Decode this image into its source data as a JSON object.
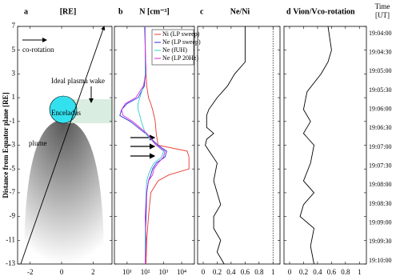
{
  "chart_data": [
    {
      "type": "line",
      "panel": "a",
      "header": "[RE]",
      "ylabel": "Distance from Equator plane [RE]",
      "ylim": [
        -13,
        7
      ],
      "yticks": [
        7,
        5,
        3,
        1,
        -1,
        -3,
        -5,
        -7,
        -9,
        -11,
        -13
      ],
      "xlim": [
        -2.8,
        3.2
      ],
      "xticks": [
        -2,
        0,
        2
      ],
      "annotations": [
        "co-rotation",
        "Ideal plasma wake",
        "Enceladus",
        "plume"
      ],
      "distance": [
        -13,
        7
      ],
      "series": [
        {
          "color": "#000000",
          "values": [
            -2.6,
            2.7
          ]
        }
      ]
    },
    {
      "type": "line",
      "panel": "b",
      "header": "N [cm⁻³]",
      "log": true,
      "xlim": [
        2,
        50000
      ],
      "xticks": [
        {
          "value": 10,
          "label": "10¹"
        },
        {
          "value": 100,
          "label": "10²"
        },
        {
          "value": 1000,
          "label": "10³"
        },
        {
          "value": 10000,
          "label": "10⁴"
        }
      ],
      "distance": [
        7,
        5,
        3,
        2,
        1,
        0.5,
        0,
        -0.5,
        -1,
        -2,
        -3,
        -3.5,
        -4,
        -4.5,
        -5,
        -5.5,
        -6,
        -7,
        -9,
        -11,
        -13
      ],
      "series": [
        {
          "name": "Ni (LP sweep)",
          "color": "#e8392c",
          "values": [
            100,
            100,
            110,
            120,
            150,
            200,
            250,
            300,
            350,
            400,
            500,
            20000,
            25000,
            25000,
            25000,
            2000,
            500,
            200,
            150,
            120,
            110
          ]
        },
        {
          "name": "Ne (LP sweep)",
          "color": "#2233dd",
          "values": [
            100,
            100,
            100,
            90,
            40,
            10,
            5,
            4,
            15,
            100,
            500,
            1500,
            1200,
            400,
            250,
            200,
            150,
            120,
            110,
            100,
            100
          ]
        },
        {
          "name": "Ne (fUH)",
          "color": "#33cccc",
          "values": [
            100,
            100,
            100,
            80,
            50,
            40,
            40,
            50,
            60,
            100,
            400,
            1000,
            800,
            300,
            200,
            150,
            120,
            110,
            100,
            100,
            100
          ]
        },
        {
          "name": "Ne (LP 20Hz)",
          "color": "#dd22dd",
          "values": [
            90,
            100,
            110,
            80,
            30,
            8,
            5,
            6,
            20,
            120,
            400,
            1200,
            1000,
            500,
            300,
            250,
            150,
            120,
            100,
            110,
            100
          ]
        }
      ]
    },
    {
      "type": "line",
      "panel": "c",
      "header": "Ne/Ni",
      "xlim": [
        -0.08,
        1.1
      ],
      "xticks": [
        0,
        0.2,
        0.4,
        0.6,
        0.8,
        1
      ],
      "distance": [
        7,
        4,
        3,
        2,
        1,
        0,
        -0.5,
        -1.5,
        -2,
        -2.5,
        -3,
        -4.5,
        -6,
        -7,
        -8,
        -9,
        -10,
        -11,
        -12,
        -13
      ],
      "series": [
        {
          "color": "#000000",
          "values": [
            0.6,
            0.6,
            0.45,
            0.35,
            0.2,
            0.08,
            0.05,
            0.05,
            0.15,
            0.05,
            0.03,
            0.2,
            0.15,
            0.2,
            0.25,
            0.15,
            0.15,
            0.25,
            0.2,
            0.3
          ]
        }
      ]
    },
    {
      "type": "line",
      "panel": "d",
      "header": "Vion/Vco-rotation",
      "xlim": [
        -0.08,
        1.1
      ],
      "xticks": [
        0,
        0.2,
        0.4,
        0.6,
        0.8,
        1
      ],
      "time_title": "Time",
      "time_unit": "[UT]",
      "time_ticks": [
        "19:04:00",
        "19:04:30",
        "19:05:00",
        "19:05:30",
        "19:06:00",
        "19:06:30",
        "19:07:00",
        "19:07:30",
        "19:08:00",
        "19:08:30",
        "19:09:00",
        "19:09:30",
        "19:10:00"
      ],
      "distance": [
        7,
        5,
        4,
        3,
        1.5,
        0,
        -1,
        -1.5,
        -2,
        -3,
        -4.5,
        -6,
        -7,
        -8,
        -9,
        -10,
        -11.5,
        -13
      ],
      "series": [
        {
          "color": "#000000",
          "values": [
            0.55,
            0.6,
            0.55,
            0.45,
            0.25,
            0.2,
            0.3,
            0.25,
            0.2,
            0.35,
            0.3,
            0.2,
            0.35,
            0.2,
            0.15,
            0.35,
            0.3,
            0.35
          ]
        }
      ]
    }
  ]
}
